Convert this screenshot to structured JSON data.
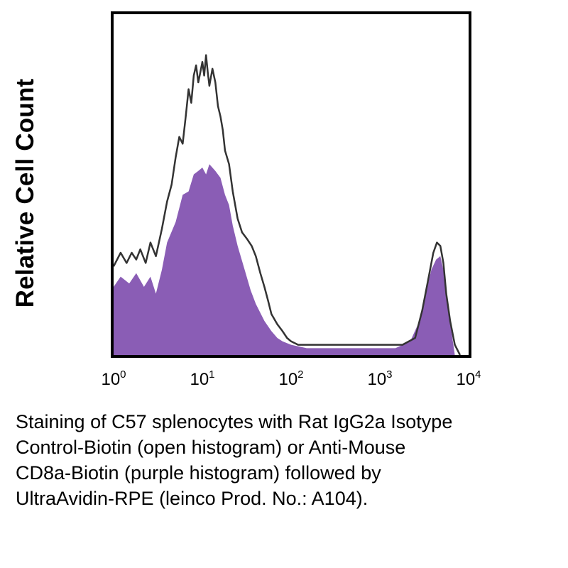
{
  "chart_data": {
    "type": "area",
    "ylabel": "Relative Cell Count",
    "xlabel": "",
    "xscale": "log",
    "xlim": [
      1,
      10000
    ],
    "ylim": [
      0,
      1
    ],
    "x_ticks": [
      {
        "base": "10",
        "exp": "0"
      },
      {
        "base": "10",
        "exp": "1"
      },
      {
        "base": "10",
        "exp": "2"
      },
      {
        "base": "10",
        "exp": "3"
      },
      {
        "base": "10",
        "exp": "4"
      }
    ],
    "series": [
      {
        "style": "filled",
        "color": "#8a5db5",
        "x": [
          1,
          1.2,
          1.5,
          1.8,
          2.2,
          2.6,
          3.0,
          3.5,
          4.0,
          5.0,
          6.0,
          7.0,
          8.0,
          9.0,
          10.0,
          11.0,
          12.0,
          14.0,
          16.0,
          18.0,
          20.0,
          22.0,
          25.0,
          30.0,
          35.0,
          40.0,
          50.0,
          60.0,
          70.0,
          80.0,
          100.0,
          150.0,
          200.0,
          400.0,
          800.0,
          1500.0,
          2200.0,
          2800.0,
          3300.0,
          3800.0,
          4300.0,
          4800.0,
          5300.0,
          6000.0,
          7000.0
        ],
        "y": [
          0.2,
          0.23,
          0.21,
          0.24,
          0.2,
          0.23,
          0.18,
          0.25,
          0.33,
          0.39,
          0.47,
          0.48,
          0.53,
          0.54,
          0.55,
          0.53,
          0.56,
          0.54,
          0.52,
          0.47,
          0.44,
          0.38,
          0.32,
          0.25,
          0.19,
          0.15,
          0.1,
          0.07,
          0.05,
          0.04,
          0.03,
          0.02,
          0.02,
          0.02,
          0.02,
          0.02,
          0.04,
          0.1,
          0.18,
          0.25,
          0.28,
          0.29,
          0.24,
          0.12,
          0.0
        ]
      },
      {
        "style": "open",
        "color": "#333333",
        "x": [
          1,
          1.2,
          1.4,
          1.6,
          1.8,
          2.0,
          2.3,
          2.6,
          3.0,
          3.5,
          4.0,
          4.5,
          5.0,
          5.5,
          6.0,
          6.5,
          7.0,
          7.5,
          8.0,
          8.5,
          9.0,
          9.5,
          10.0,
          10.5,
          11.0,
          11.5,
          12.0,
          13.0,
          14.0,
          15.0,
          16.0,
          17.0,
          18.0,
          20.0,
          22.0,
          25.0,
          28.0,
          32.0,
          36.0,
          40.0,
          45.0,
          50.0,
          55.0,
          60.0,
          70.0,
          80.0,
          90.0,
          100.0,
          120.0,
          150.0,
          200.0,
          300.0,
          500.0,
          800.0,
          1200.0,
          1800.0,
          2500.0,
          3000.0,
          3500.0,
          4000.0,
          4400.0,
          4800.0,
          5200.0,
          5600.0,
          6200.0,
          7000.0,
          8000.0
        ],
        "y": [
          0.26,
          0.3,
          0.27,
          0.3,
          0.28,
          0.31,
          0.27,
          0.33,
          0.29,
          0.37,
          0.45,
          0.5,
          0.58,
          0.64,
          0.62,
          0.7,
          0.78,
          0.74,
          0.82,
          0.85,
          0.8,
          0.83,
          0.86,
          0.82,
          0.88,
          0.83,
          0.79,
          0.84,
          0.8,
          0.73,
          0.7,
          0.66,
          0.6,
          0.56,
          0.48,
          0.4,
          0.36,
          0.34,
          0.32,
          0.29,
          0.24,
          0.2,
          0.16,
          0.12,
          0.09,
          0.07,
          0.05,
          0.04,
          0.03,
          0.03,
          0.03,
          0.03,
          0.03,
          0.03,
          0.03,
          0.03,
          0.05,
          0.13,
          0.22,
          0.3,
          0.33,
          0.32,
          0.27,
          0.18,
          0.1,
          0.03,
          0.0
        ]
      }
    ]
  },
  "caption": {
    "line1": "Staining of C57 splenocytes with Rat IgG2a Isotype",
    "line2": "Control-Biotin (open histogram) or Anti-Mouse",
    "line3": "CD8a-Biotin (purple histogram) followed by",
    "line4": "UltraAvidin-RPE (leinco Prod. No.: A104)."
  }
}
